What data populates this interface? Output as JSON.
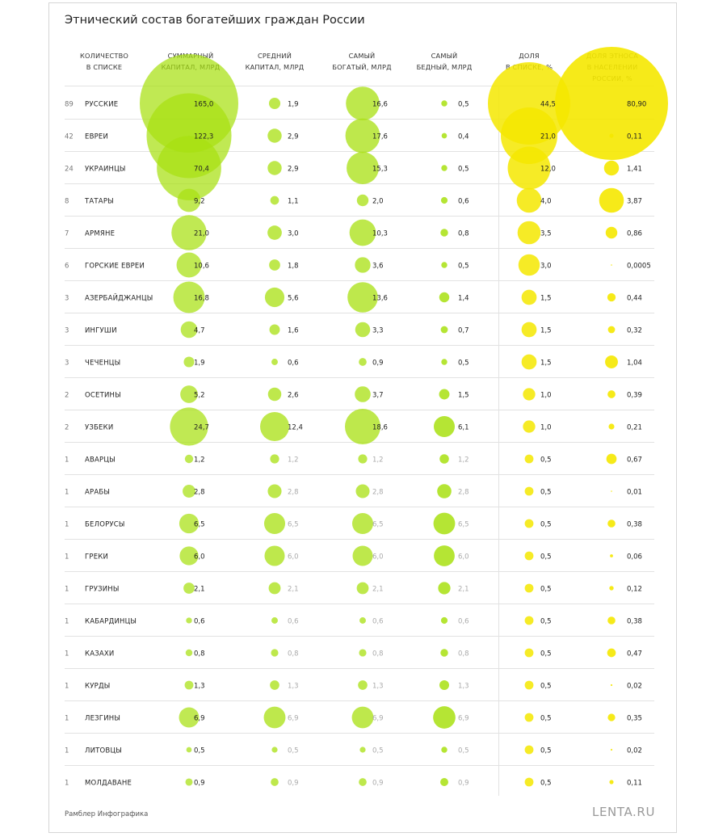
{
  "title": "Этнический состав богатейших граждан России",
  "footer": {
    "credit": "Рамблер Инфографика",
    "logo": "LENTA.RU"
  },
  "colors": {
    "green": "#a8e010",
    "green_dark": "#7cc000",
    "yellow": "#f5e800",
    "grid": "#e2e2e2"
  },
  "chart_data": {
    "type": "table",
    "columns": [
      {
        "key": "count",
        "header": [
          "КОЛИЧЕСТВО",
          "В СПИСКЕ"
        ]
      },
      {
        "key": "name",
        "header": []
      },
      {
        "key": "total",
        "header": [
          "СУММАРНЫЙ",
          "КАПИТАЛ, МЛРД"
        ]
      },
      {
        "key": "avg",
        "header": [
          "СРЕДНИЙ",
          "КАПИТАЛ, МЛРД"
        ]
      },
      {
        "key": "richest",
        "header": [
          "САМЫЙ",
          "БОГАТЫЙ, МЛРД"
        ]
      },
      {
        "key": "poorest",
        "header": [
          "САМЫЙ",
          "БЕДНЫЙ, МЛРД"
        ]
      },
      {
        "key": "share_list",
        "header": [
          "ДОЛЯ",
          "В СПИСКЕ, %"
        ]
      },
      {
        "key": "share_pop",
        "header": [
          "ДОЛЯ ЭТНОСА",
          "В НАСЕЛЕНИИ",
          "РОССИИ, %"
        ]
      }
    ],
    "rows": [
      {
        "count": "89",
        "name": "РУССКИЕ",
        "total": "165,0",
        "avg": "1,9",
        "richest": "16,6",
        "poorest": "0,5",
        "share_list": "44,5",
        "share_pop": "80,90"
      },
      {
        "count": "42",
        "name": "ЕВРЕИ",
        "total": "122,3",
        "avg": "2,9",
        "richest": "17,6",
        "poorest": "0,4",
        "share_list": "21,0",
        "share_pop": "0,11"
      },
      {
        "count": "24",
        "name": "УКРАИНЦЫ",
        "total": "70,4",
        "avg": "2,9",
        "richest": "15,3",
        "poorest": "0,5",
        "share_list": "12,0",
        "share_pop": "1,41"
      },
      {
        "count": "8",
        "name": "ТАТАРЫ",
        "total": "9,2",
        "avg": "1,1",
        "richest": "2,0",
        "poorest": "0,6",
        "share_list": "4,0",
        "share_pop": "3,87"
      },
      {
        "count": "7",
        "name": "АРМЯНЕ",
        "total": "21,0",
        "avg": "3,0",
        "richest": "10,3",
        "poorest": "0,8",
        "share_list": "3,5",
        "share_pop": "0,86"
      },
      {
        "count": "6",
        "name": "ГОРСКИЕ ЕВРЕИ",
        "total": "10,6",
        "avg": "1,8",
        "richest": "3,6",
        "poorest": "0,5",
        "share_list": "3,0",
        "share_pop": "0,0005"
      },
      {
        "count": "3",
        "name": "АЗЕРБАЙДЖАНЦЫ",
        "total": "16,8",
        "avg": "5,6",
        "richest": "13,6",
        "poorest": "1,4",
        "share_list": "1,5",
        "share_pop": "0,44"
      },
      {
        "count": "3",
        "name": "ИНГУШИ",
        "total": "4,7",
        "avg": "1,6",
        "richest": "3,3",
        "poorest": "0,7",
        "share_list": "1,5",
        "share_pop": "0,32"
      },
      {
        "count": "3",
        "name": "ЧЕЧЕНЦЫ",
        "total": "1,9",
        "avg": "0,6",
        "richest": "0,9",
        "poorest": "0,5",
        "share_list": "1,5",
        "share_pop": "1,04"
      },
      {
        "count": "2",
        "name": "ОСЕТИНЫ",
        "total": "5,2",
        "avg": "2,6",
        "richest": "3,7",
        "poorest": "1,5",
        "share_list": "1,0",
        "share_pop": "0,39"
      },
      {
        "count": "2",
        "name": "УЗБЕКИ",
        "total": "24,7",
        "avg": "12,4",
        "richest": "18,6",
        "poorest": "6,1",
        "share_list": "1,0",
        "share_pop": "0,21"
      },
      {
        "count": "1",
        "name": "АВАРЦЫ",
        "total": "1,2",
        "avg": "1,2",
        "richest": "1,2",
        "poorest": "1,2",
        "share_list": "0,5",
        "share_pop": "0,67"
      },
      {
        "count": "1",
        "name": "АРАБЫ",
        "total": "2,8",
        "avg": "2,8",
        "richest": "2,8",
        "poorest": "2,8",
        "share_list": "0,5",
        "share_pop": "0,01"
      },
      {
        "count": "1",
        "name": "БЕЛОРУСЫ",
        "total": "6,5",
        "avg": "6,5",
        "richest": "6,5",
        "poorest": "6,5",
        "share_list": "0,5",
        "share_pop": "0,38"
      },
      {
        "count": "1",
        "name": "ГРЕКИ",
        "total": "6,0",
        "avg": "6,0",
        "richest": "6,0",
        "poorest": "6,0",
        "share_list": "0,5",
        "share_pop": "0,06"
      },
      {
        "count": "1",
        "name": "ГРУЗИНЫ",
        "total": "2,1",
        "avg": "2,1",
        "richest": "2,1",
        "poorest": "2,1",
        "share_list": "0,5",
        "share_pop": "0,12"
      },
      {
        "count": "1",
        "name": "КАБАРДИНЦЫ",
        "total": "0,6",
        "avg": "0,6",
        "richest": "0,6",
        "poorest": "0,6",
        "share_list": "0,5",
        "share_pop": "0,38"
      },
      {
        "count": "1",
        "name": "КАЗАХИ",
        "total": "0,8",
        "avg": "0,8",
        "richest": "0,8",
        "poorest": "0,8",
        "share_list": "0,5",
        "share_pop": "0,47"
      },
      {
        "count": "1",
        "name": "КУРДЫ",
        "total": "1,3",
        "avg": "1,3",
        "richest": "1,3",
        "poorest": "1,3",
        "share_list": "0,5",
        "share_pop": "0,02"
      },
      {
        "count": "1",
        "name": "ЛЕЗГИНЫ",
        "total": "6,9",
        "avg": "6,9",
        "richest": "6,9",
        "poorest": "6,9",
        "share_list": "0,5",
        "share_pop": "0,35"
      },
      {
        "count": "1",
        "name": "ЛИТОВЦЫ",
        "total": "0,5",
        "avg": "0,5",
        "richest": "0,5",
        "poorest": "0,5",
        "share_list": "0,5",
        "share_pop": "0,02"
      },
      {
        "count": "1",
        "name": "МОЛДАВАНЕ",
        "total": "0,9",
        "avg": "0,9",
        "richest": "0,9",
        "poorest": "0,9",
        "share_list": "0,5",
        "share_pop": "0,11"
      }
    ]
  }
}
